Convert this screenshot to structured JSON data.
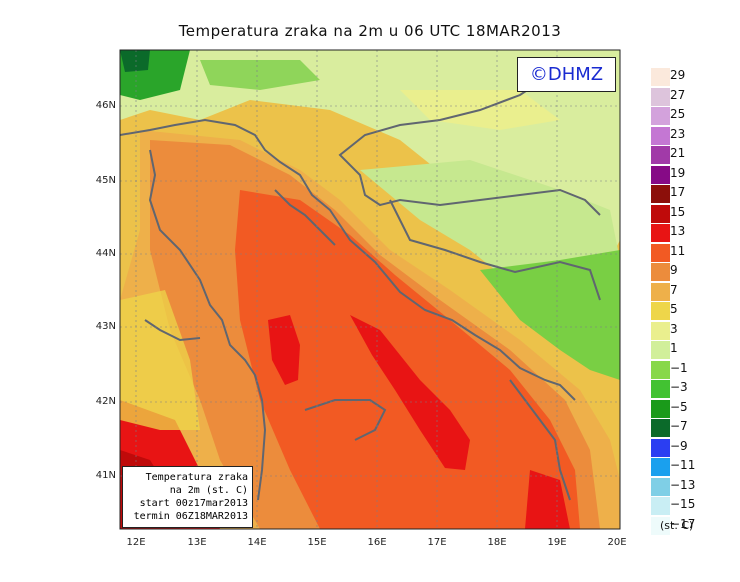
{
  "title": "Temperatura zraka na 2m u 06 UTC 18MAR2013",
  "watermark": "©DHMZ",
  "info": {
    "line1": "Temperatura zraka",
    "line2": "na 2m (st. C)",
    "line3": "start 00z17mar2013",
    "line4": "termin 06Z18MAR2013"
  },
  "lat_labels": [
    "46N",
    "45N",
    "44N",
    "43N",
    "42N",
    "41N"
  ],
  "lon_labels": [
    "12E",
    "13E",
    "14E",
    "15E",
    "16E",
    "17E",
    "18E",
    "19E",
    "20E"
  ],
  "colorbar": {
    "labels": [
      "29",
      "27",
      "25",
      "23",
      "21",
      "19",
      "17",
      "15",
      "13",
      "11",
      "9",
      "7",
      "5",
      "3",
      "1",
      "−1",
      "−3",
      "−5",
      "−7",
      "−9",
      "−11",
      "−13",
      "−15",
      "−17"
    ],
    "colors": [
      "#fbe9dc",
      "#ddc4dc",
      "#d3a2dc",
      "#c477d3",
      "#a13aa8",
      "#860a86",
      "#8c0f0a",
      "#bf0a0a",
      "#e81414",
      "#f25a23",
      "#ec8c3c",
      "#eeb04a",
      "#eed64a",
      "#eaef8e",
      "#d1ef9a",
      "#88d84a",
      "#42c232",
      "#1a9a1a",
      "#0b6a2a",
      "#2b3ef2",
      "#1aa0ee",
      "#7fcfe6",
      "#c9eef4",
      "#eefbfb"
    ],
    "units": "(st. C)"
  }
}
